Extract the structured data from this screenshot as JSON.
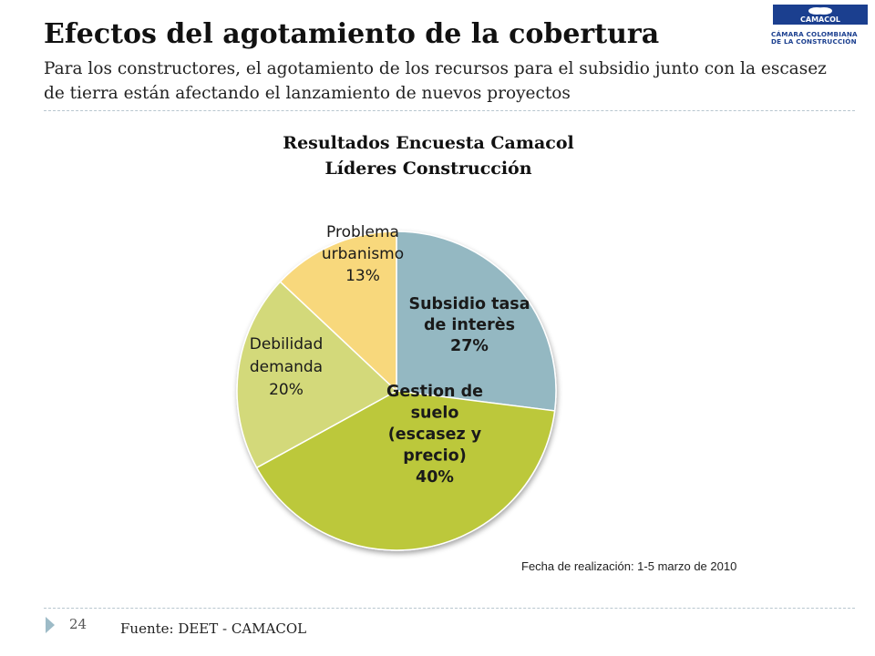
{
  "slide": {
    "title": "Efectos del agotamiento de la cobertura",
    "subtitle": "Para los constructores, el agotamiento de los recursos para el subsidio junto con la escasez de tierra están afectando el lanzamiento de nuevos proyectos",
    "logo": {
      "brand": "CAMACOL",
      "line1": "CÁMARA COLOMBIANA",
      "line2": "DE LA CONSTRUCCIÓN",
      "color": "#1b3f8f"
    },
    "page_number": "24",
    "source": "Fuente: DEET - CAMACOL",
    "note": "Fecha de realización:  1-5 marzo de 2010"
  },
  "chart_data": {
    "type": "pie",
    "title_lines": [
      "Resultados Encuesta Camacol",
      "Líderes Construcción"
    ],
    "slices": [
      {
        "label_lines": [
          "Subsidio tasa",
          "de interès",
          "27%"
        ],
        "value": 27,
        "color": "#94b8c2",
        "bold": true
      },
      {
        "label_lines": [
          "Gestion de",
          "suelo",
          "(escasez y",
          "precio)",
          "40%"
        ],
        "value": 40,
        "color": "#bcc83a",
        "bold": true
      },
      {
        "label_lines": [
          "Debilidad",
          "demanda",
          "20%"
        ],
        "value": 20,
        "color": "#d3d97a",
        "bold": false
      },
      {
        "label_lines": [
          "Problema",
          "urbanismo",
          "13%"
        ],
        "value": 13,
        "color": "#f8d87c",
        "bold": false
      }
    ]
  }
}
